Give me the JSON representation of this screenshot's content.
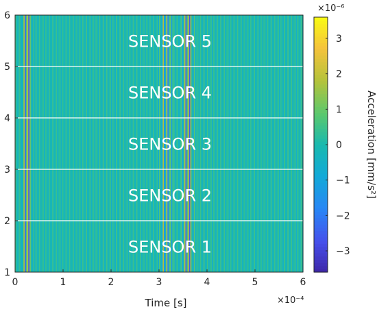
{
  "chart_data": {
    "type": "heatmap",
    "xlabel": "Time [s]",
    "x_multiplier": "×10⁻⁴",
    "xlim": [
      0,
      6
    ],
    "x_ticks": [
      "0",
      "1",
      "2",
      "3",
      "4",
      "5",
      "6"
    ],
    "ylim": [
      1,
      6
    ],
    "y_ticks": [
      "1",
      "2",
      "3",
      "4",
      "5",
      "6"
    ],
    "rows": [
      {
        "label": "SENSOR 1",
        "y_range": [
          1,
          2
        ]
      },
      {
        "label": "SENSOR 2",
        "y_range": [
          2,
          3
        ]
      },
      {
        "label": "SENSOR 3",
        "y_range": [
          3,
          4
        ]
      },
      {
        "label": "SENSOR 4",
        "y_range": [
          4,
          5
        ]
      },
      {
        "label": "SENSOR 5",
        "y_range": [
          5,
          6
        ]
      }
    ],
    "colorbar": {
      "label": "Acceleration [mm/s²]",
      "multiplier": "×10⁻⁶",
      "range": [
        -3.6,
        3.6
      ],
      "ticks": [
        "−3",
        "−2",
        "−1",
        "0",
        "1",
        "2",
        "3"
      ],
      "tick_values": [
        -3,
        -2,
        -1,
        0,
        1,
        2,
        3
      ],
      "colormap": "parula"
    },
    "wave_packets": [
      {
        "center": 0.25,
        "width": 0.2,
        "amplitude": 3.4
      },
      {
        "center": 3.15,
        "width": 0.25,
        "amplitude": 2.0
      },
      {
        "center": 3.6,
        "width": 0.22,
        "amplitude": 2.8
      }
    ],
    "separator_color": "#ffffff"
  }
}
